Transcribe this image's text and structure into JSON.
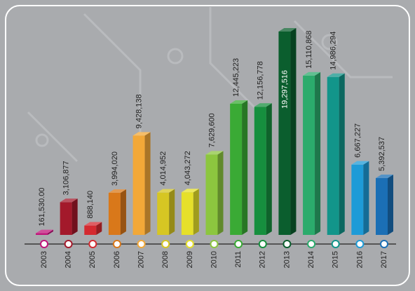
{
  "chart_data": {
    "type": "bar",
    "categories": [
      "2003",
      "2004",
      "2005",
      "2006",
      "2007",
      "2008",
      "2009",
      "2010",
      "2011",
      "2012",
      "2013",
      "2014",
      "2015",
      "2016",
      "2017"
    ],
    "values": [
      161530,
      3106877,
      888140,
      3994020,
      9428138,
      4014952,
      4043272,
      7629600,
      12445223,
      12156778,
      19297516,
      15110868,
      14986294,
      6667227,
      5392537
    ],
    "value_labels": [
      "161,530.00",
      "3,106,877",
      "888,140",
      "3,994,020",
      "9,428,138",
      "4,014,952",
      "4,043,272",
      "7,629,600",
      "12,445,223",
      "12,156,778",
      "19,297,516",
      "15,110,868",
      "14,986,294",
      "6,667,227",
      "5,392,537"
    ],
    "colors": [
      "#c0157a",
      "#a3192b",
      "#d42a30",
      "#d9781a",
      "#f2a838",
      "#d6c623",
      "#e6e02a",
      "#8cc63f",
      "#3aaa35",
      "#168f3e",
      "#0b5e2e",
      "#2bab6c",
      "#12958a",
      "#1e9bd7",
      "#1b6fb5"
    ]
  }
}
